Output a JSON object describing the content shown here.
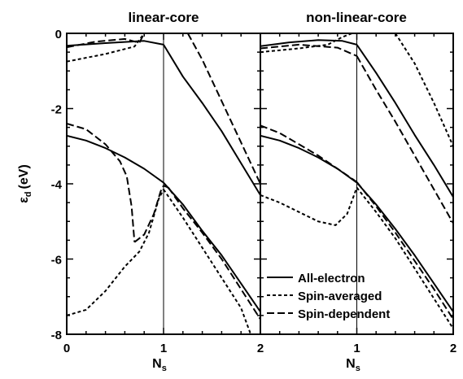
{
  "chart_data": {
    "type": "line",
    "ylabel": "ε",
    "ylabel_sub": "d",
    "ylabel_unit": "(eV)",
    "xlabel": "N",
    "xlabel_sub": "s",
    "ylim": [
      -8,
      0
    ],
    "xlim": [
      0,
      2
    ],
    "yticks": [
      "0",
      "-2",
      "-4",
      "-6",
      "-8"
    ],
    "legend": {
      "placement": "bottom-right of right panel",
      "entries": [
        {
          "name": "All-electron",
          "style": "solid"
        },
        {
          "name": "Spin-averaged",
          "style": "short-dash"
        },
        {
          "name": "Spin-dependent",
          "style": "long-dash"
        }
      ]
    },
    "panels": [
      {
        "title": "linear-core",
        "xticks": [
          "0",
          "1",
          "2"
        ],
        "series": [
          {
            "style": "solid",
            "x": [
              0,
              0.4,
              0.8,
              1.0
            ],
            "y": [
              -0.33,
              -0.26,
              -0.2,
              -0.3
            ]
          },
          {
            "style": "solid",
            "x": [
              1.0,
              1.2,
              1.4,
              1.6,
              1.8,
              2.0
            ],
            "y": [
              -0.3,
              -1.15,
              -1.85,
              -2.6,
              -3.45,
              -4.3
            ]
          },
          {
            "style": "solid",
            "x": [
              0,
              0.2,
              0.4,
              0.6,
              0.8,
              1.0
            ],
            "y": [
              -2.72,
              -2.85,
              -3.05,
              -3.3,
              -3.6,
              -3.97
            ]
          },
          {
            "style": "solid",
            "x": [
              1.0,
              1.2,
              1.4,
              1.6,
              1.8,
              2.0
            ],
            "y": [
              -3.97,
              -4.55,
              -5.25,
              -5.9,
              -6.65,
              -7.4
            ]
          },
          {
            "style": "short-dash",
            "x": [
              0,
              0.4,
              0.7,
              0.8,
              1.0,
              2.0
            ],
            "y": [
              -0.75,
              -0.55,
              -0.35,
              0,
              0,
              0
            ]
          },
          {
            "style": "short-dash",
            "x": [
              0,
              0.2,
              0.4,
              0.6,
              0.75,
              0.85,
              0.95,
              1.0
            ],
            "y": [
              -7.5,
              -7.35,
              -6.85,
              -6.2,
              -5.8,
              -5.3,
              -4.4,
              -4.15
            ]
          },
          {
            "style": "short-dash",
            "x": [
              1.0,
              1.2,
              1.4,
              1.6,
              1.8,
              1.9
            ],
            "y": [
              -4.15,
              -4.9,
              -5.7,
              -6.5,
              -7.3,
              -8.0
            ]
          },
          {
            "style": "long-dash",
            "x": [
              0,
              0.3,
              0.6,
              0.75,
              0.8,
              0.85
            ],
            "y": [
              -0.37,
              -0.22,
              -0.15,
              -0.25,
              0,
              0
            ]
          },
          {
            "style": "long-dash",
            "x": [
              1.25,
              1.4,
              1.6,
              1.8,
              2.0
            ],
            "y": [
              0,
              -0.7,
              -1.8,
              -2.9,
              -4.0
            ]
          },
          {
            "style": "long-dash",
            "x": [
              0,
              0.2,
              0.4,
              0.55,
              0.62,
              0.67,
              0.7
            ],
            "y": [
              -2.4,
              -2.55,
              -2.95,
              -3.4,
              -3.8,
              -4.6,
              -5.55
            ]
          },
          {
            "style": "long-dash",
            "x": [
              0.7,
              0.8,
              0.9,
              0.97,
              1.0,
              1.05
            ],
            "y": [
              -5.55,
              -5.35,
              -4.8,
              -4.2,
              -4.05,
              -4.1
            ]
          },
          {
            "style": "long-dash",
            "x": [
              1.05,
              1.2,
              1.4,
              1.6,
              1.8,
              2.0
            ],
            "y": [
              -4.1,
              -4.65,
              -5.3,
              -6.0,
              -6.8,
              -7.6
            ]
          }
        ]
      },
      {
        "title": "non-linear-core",
        "xticks": [
          "",
          "1",
          "2"
        ],
        "series": [
          {
            "style": "solid",
            "x": [
              0,
              0.3,
              0.6,
              0.85,
              1.0
            ],
            "y": [
              -0.34,
              -0.24,
              -0.18,
              -0.2,
              -0.3
            ]
          },
          {
            "style": "solid",
            "x": [
              1.0,
              1.2,
              1.4,
              1.6,
              1.8,
              2.0
            ],
            "y": [
              -0.3,
              -1.05,
              -1.85,
              -2.7,
              -3.5,
              -4.35
            ]
          },
          {
            "style": "solid",
            "x": [
              0,
              0.2,
              0.4,
              0.6,
              0.8,
              1.0
            ],
            "y": [
              -2.72,
              -2.85,
              -3.05,
              -3.3,
              -3.6,
              -3.97
            ]
          },
          {
            "style": "solid",
            "x": [
              1.0,
              1.2,
              1.4,
              1.6,
              1.8,
              2.0
            ],
            "y": [
              -3.97,
              -4.55,
              -5.2,
              -5.9,
              -6.65,
              -7.4
            ]
          },
          {
            "style": "short-dash",
            "x": [
              0,
              0.4,
              0.7,
              0.85,
              0.95,
              1.05,
              1.4
            ],
            "y": [
              -0.5,
              -0.4,
              -0.3,
              -0.1,
              0,
              0,
              0
            ]
          },
          {
            "style": "short-dash",
            "x": [
              1.4,
              1.6,
              1.8,
              2.0
            ],
            "y": [
              0,
              -0.8,
              -1.85,
              -3.0
            ]
          },
          {
            "style": "short-dash",
            "x": [
              0,
              0.2,
              0.4,
              0.6,
              0.78,
              0.9,
              1.0
            ],
            "y": [
              -4.3,
              -4.5,
              -4.75,
              -5.0,
              -5.1,
              -4.8,
              -4.1
            ]
          },
          {
            "style": "short-dash",
            "x": [
              1.0,
              1.2,
              1.4,
              1.6,
              1.8,
              2.0
            ],
            "y": [
              -4.1,
              -4.75,
              -5.45,
              -6.25,
              -7.05,
              -7.85
            ]
          },
          {
            "style": "long-dash",
            "x": [
              0,
              0.4,
              0.8,
              1.0
            ],
            "y": [
              -0.4,
              -0.3,
              -0.38,
              -0.6
            ]
          },
          {
            "style": "long-dash",
            "x": [
              1.0,
              1.2,
              1.4,
              1.6,
              1.8,
              2.0
            ],
            "y": [
              -0.6,
              -1.5,
              -2.35,
              -3.25,
              -4.15,
              -5.05
            ]
          },
          {
            "style": "long-dash",
            "x": [
              0,
              0.2,
              0.4,
              0.6,
              0.8,
              1.0
            ],
            "y": [
              -2.45,
              -2.65,
              -2.95,
              -3.25,
              -3.6,
              -3.95
            ]
          },
          {
            "style": "long-dash",
            "x": [
              1.0,
              1.2,
              1.4,
              1.6,
              1.8,
              2.0
            ],
            "y": [
              -3.95,
              -4.6,
              -5.3,
              -6.05,
              -6.8,
              -7.6
            ]
          }
        ]
      }
    ]
  }
}
